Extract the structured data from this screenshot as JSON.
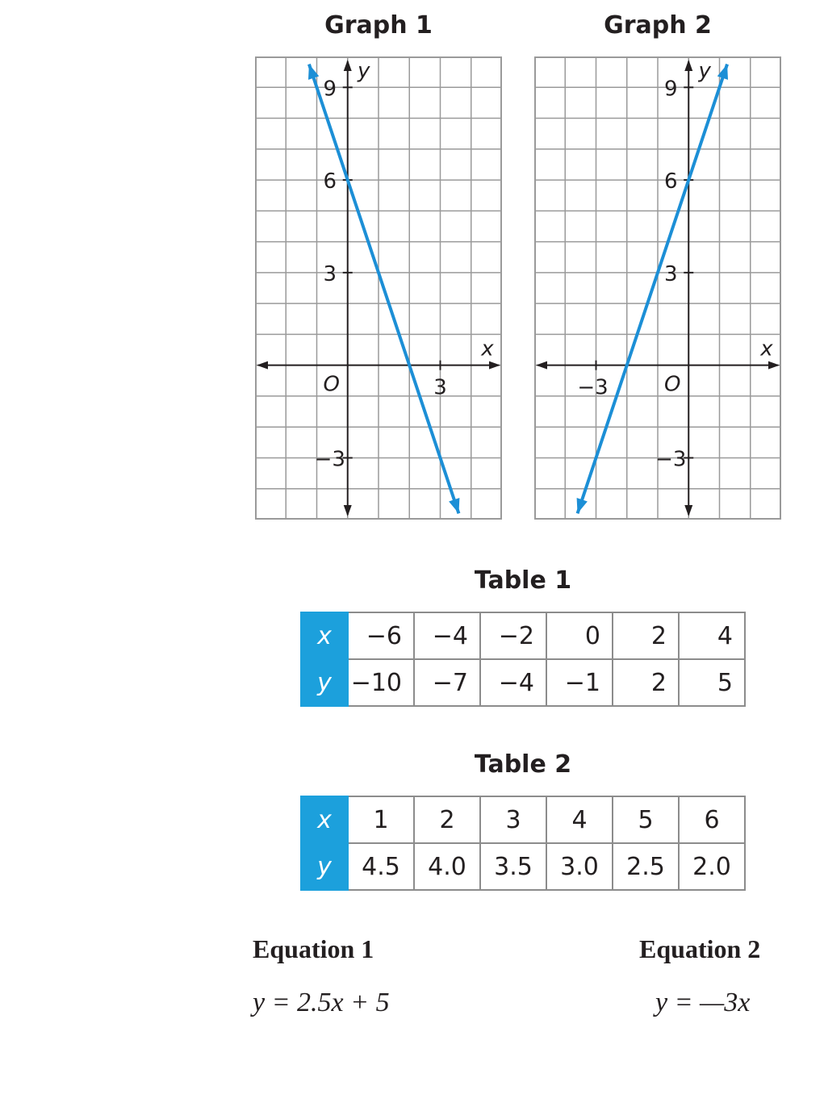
{
  "graphs": [
    {
      "title": "Graph 1",
      "x_label": "x",
      "y_label": "y",
      "origin_label": "O",
      "x_tick_labels": [
        "3"
      ],
      "y_tick_labels": [
        "9",
        "6",
        "3",
        "−3"
      ],
      "line_color": "#1c8fd6"
    },
    {
      "title": "Graph 2",
      "x_label": "x",
      "y_label": "y",
      "origin_label": "O",
      "x_tick_labels": [
        "−3"
      ],
      "y_tick_labels": [
        "9",
        "6",
        "3",
        "−3"
      ],
      "line_color": "#1c8fd6"
    }
  ],
  "chart_data": [
    {
      "type": "line",
      "title": "Graph 1",
      "xlabel": "x",
      "ylabel": "y",
      "xlim": [
        -3,
        5
      ],
      "ylim": [
        -5,
        10
      ],
      "x_ticks": [
        3
      ],
      "y_ticks": [
        -3,
        3,
        6,
        9
      ],
      "grid": true,
      "series": [
        {
          "x": [
            -1.25,
            3.6
          ],
          "y": [
            9.75,
            -4.8
          ]
        }
      ]
    },
    {
      "type": "line",
      "title": "Graph 2",
      "xlabel": "x",
      "ylabel": "y",
      "xlim": [
        -5,
        3
      ],
      "ylim": [
        -5,
        10
      ],
      "x_ticks": [
        -3
      ],
      "y_ticks": [
        -3,
        3,
        6,
        9
      ],
      "grid": true,
      "series": [
        {
          "x": [
            -3.6,
            1.25
          ],
          "y": [
            -4.8,
            9.75
          ]
        }
      ]
    }
  ],
  "tables": [
    {
      "title": "Table 1",
      "x_header": "x",
      "y_header": "y",
      "x_values": [
        "−6",
        "−4",
        "−2",
        "0",
        "2",
        "4"
      ],
      "y_values": [
        "−10",
        "−7",
        "−4",
        "−1",
        "2",
        "5"
      ]
    },
    {
      "title": "Table 2",
      "x_header": "x",
      "y_header": "y",
      "x_values": [
        "1",
        "2",
        "3",
        "4",
        "5",
        "6"
      ],
      "y_values": [
        "4.5",
        "4.0",
        "3.5",
        "3.0",
        "2.5",
        "2.0"
      ]
    }
  ],
  "equations": [
    {
      "title": "Equation 1",
      "text": "y = 2.5x + 5"
    },
    {
      "title": "Equation 2",
      "text": "y = —3x"
    }
  ],
  "colors": {
    "accent": "#1ca0dc",
    "grid": "#9a9a9a",
    "line": "#1c8fd6"
  }
}
